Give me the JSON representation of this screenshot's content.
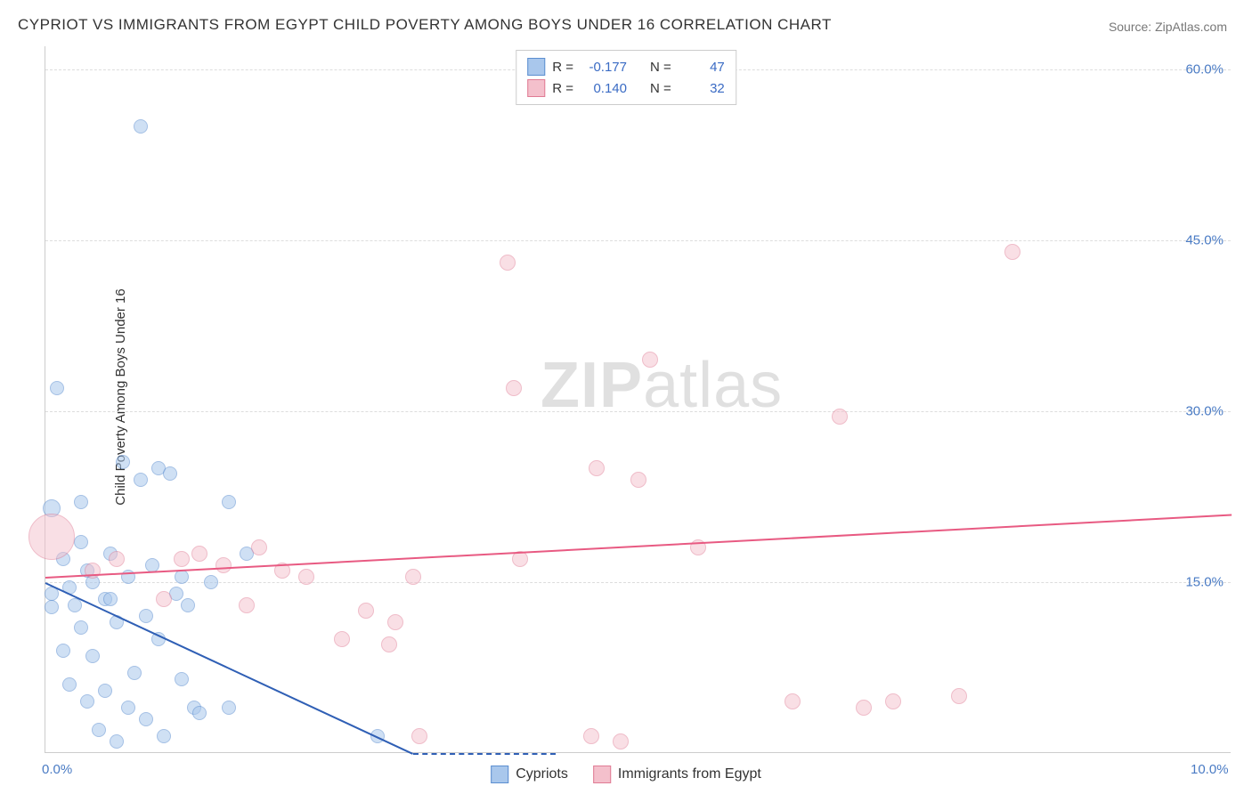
{
  "title": "CYPRIOT VS IMMIGRANTS FROM EGYPT CHILD POVERTY AMONG BOYS UNDER 16 CORRELATION CHART",
  "source": "Source: ZipAtlas.com",
  "y_axis_label": "Child Poverty Among Boys Under 16",
  "watermark_bold": "ZIP",
  "watermark_rest": "atlas",
  "chart": {
    "type": "scatter",
    "background_color": "#ffffff",
    "grid_color": "#dddddd",
    "axis_color": "#cccccc",
    "tick_label_color": "#4a7bc4",
    "tick_fontsize": 15,
    "xlim": [
      0.0,
      10.0
    ],
    "ylim": [
      0.0,
      62.0
    ],
    "yticks": [
      15.0,
      30.0,
      45.0,
      60.0
    ],
    "ytick_labels": [
      "15.0%",
      "30.0%",
      "45.0%",
      "60.0%"
    ],
    "xticks": [
      0.0,
      10.0
    ],
    "xtick_labels": [
      "0.0%",
      "10.0%"
    ],
    "series": [
      {
        "name": "Cypriots",
        "label": "Cypriots",
        "fill_color": "#a9c7ec",
        "stroke_color": "#5b8ed0",
        "fill_opacity": 0.55,
        "marker_radius": 8,
        "trend_color": "#2f5fb5",
        "trend_start": [
          0.0,
          15.0
        ],
        "trend_end": [
          3.1,
          0.0
        ],
        "trend_dash_end": [
          4.3,
          0.0
        ],
        "R_label": "R = ",
        "R_value": "-0.177",
        "N_label": "N = ",
        "N_value": "47",
        "points": [
          {
            "x": 0.05,
            "y": 14.0
          },
          {
            "x": 0.05,
            "y": 12.8
          },
          {
            "x": 0.05,
            "y": 21.5,
            "r": 10
          },
          {
            "x": 0.1,
            "y": 32.0
          },
          {
            "x": 0.15,
            "y": 17.0
          },
          {
            "x": 0.15,
            "y": 9.0
          },
          {
            "x": 0.2,
            "y": 14.5
          },
          {
            "x": 0.2,
            "y": 6.0
          },
          {
            "x": 0.25,
            "y": 13.0
          },
          {
            "x": 0.3,
            "y": 18.5
          },
          {
            "x": 0.3,
            "y": 11.0
          },
          {
            "x": 0.35,
            "y": 4.5
          },
          {
            "x": 0.35,
            "y": 16.0
          },
          {
            "x": 0.4,
            "y": 15.0
          },
          {
            "x": 0.4,
            "y": 8.5
          },
          {
            "x": 0.45,
            "y": 2.0
          },
          {
            "x": 0.5,
            "y": 13.5
          },
          {
            "x": 0.5,
            "y": 5.5
          },
          {
            "x": 0.55,
            "y": 17.5
          },
          {
            "x": 0.6,
            "y": 11.5
          },
          {
            "x": 0.6,
            "y": 1.0
          },
          {
            "x": 0.65,
            "y": 25.5
          },
          {
            "x": 0.7,
            "y": 15.5
          },
          {
            "x": 0.7,
            "y": 4.0
          },
          {
            "x": 0.75,
            "y": 7.0
          },
          {
            "x": 0.8,
            "y": 55.0
          },
          {
            "x": 0.8,
            "y": 24.0
          },
          {
            "x": 0.85,
            "y": 12.0
          },
          {
            "x": 0.85,
            "y": 3.0
          },
          {
            "x": 0.9,
            "y": 16.5
          },
          {
            "x": 0.95,
            "y": 25.0
          },
          {
            "x": 0.95,
            "y": 10.0
          },
          {
            "x": 1.0,
            "y": 1.5
          },
          {
            "x": 1.05,
            "y": 24.5
          },
          {
            "x": 1.1,
            "y": 14.0
          },
          {
            "x": 1.15,
            "y": 15.5
          },
          {
            "x": 1.15,
            "y": 6.5
          },
          {
            "x": 1.2,
            "y": 13.0
          },
          {
            "x": 1.25,
            "y": 4.0
          },
          {
            "x": 1.3,
            "y": 3.5
          },
          {
            "x": 1.4,
            "y": 15.0
          },
          {
            "x": 1.55,
            "y": 22.0
          },
          {
            "x": 1.55,
            "y": 4.0
          },
          {
            "x": 1.7,
            "y": 17.5
          },
          {
            "x": 2.8,
            "y": 1.5
          },
          {
            "x": 0.3,
            "y": 22.0
          },
          {
            "x": 0.55,
            "y": 13.5
          }
        ]
      },
      {
        "name": "Immigrants from Egypt",
        "label": "Immigrants from Egypt",
        "fill_color": "#f4c0cc",
        "stroke_color": "#e07b94",
        "fill_opacity": 0.5,
        "marker_radius": 9,
        "trend_color": "#e85a82",
        "trend_start": [
          0.0,
          15.5
        ],
        "trend_end": [
          10.0,
          21.0
        ],
        "R_label": "R = ",
        "R_value": "0.140",
        "N_label": "N = ",
        "N_value": "32",
        "points": [
          {
            "x": 0.05,
            "y": 19.0,
            "r": 26
          },
          {
            "x": 0.6,
            "y": 17.0
          },
          {
            "x": 1.0,
            "y": 13.5
          },
          {
            "x": 1.3,
            "y": 17.5
          },
          {
            "x": 1.5,
            "y": 16.5
          },
          {
            "x": 1.7,
            "y": 13.0
          },
          {
            "x": 1.8,
            "y": 18.0
          },
          {
            "x": 2.0,
            "y": 16.0
          },
          {
            "x": 2.5,
            "y": 10.0
          },
          {
            "x": 2.7,
            "y": 12.5
          },
          {
            "x": 2.9,
            "y": 9.5
          },
          {
            "x": 2.95,
            "y": 11.5
          },
          {
            "x": 3.1,
            "y": 15.5
          },
          {
            "x": 3.15,
            "y": 1.5
          },
          {
            "x": 3.9,
            "y": 43.0
          },
          {
            "x": 3.95,
            "y": 32.0
          },
          {
            "x": 4.0,
            "y": 17.0
          },
          {
            "x": 4.6,
            "y": 1.5
          },
          {
            "x": 4.65,
            "y": 25.0
          },
          {
            "x": 4.85,
            "y": 1.0
          },
          {
            "x": 5.0,
            "y": 24.0
          },
          {
            "x": 5.1,
            "y": 34.5
          },
          {
            "x": 5.5,
            "y": 18.0
          },
          {
            "x": 6.3,
            "y": 4.5
          },
          {
            "x": 6.7,
            "y": 29.5
          },
          {
            "x": 6.9,
            "y": 4.0
          },
          {
            "x": 7.15,
            "y": 4.5
          },
          {
            "x": 7.7,
            "y": 5.0
          },
          {
            "x": 8.15,
            "y": 44.0
          },
          {
            "x": 1.15,
            "y": 17.0
          },
          {
            "x": 0.4,
            "y": 16.0
          },
          {
            "x": 2.2,
            "y": 15.5
          }
        ]
      }
    ]
  },
  "bottom_legend": [
    {
      "label": "Cypriots",
      "fill": "#a9c7ec",
      "stroke": "#5b8ed0"
    },
    {
      "label": "Immigrants from Egypt",
      "fill": "#f4c0cc",
      "stroke": "#e07b94"
    }
  ]
}
